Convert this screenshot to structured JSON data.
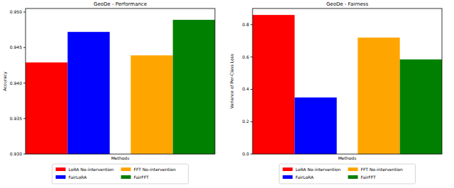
{
  "chart_data": [
    {
      "type": "bar",
      "title": "GeoDe - Performance",
      "x_label": "Methods",
      "y_label": "Accuracy",
      "ylim": [
        0.93,
        0.9505
      ],
      "yticks": [
        {
          "value": 0.93,
          "label": "0.930"
        },
        0.935,
        {
          "value": 0.94,
          "label": "0.940"
        },
        0.945,
        {
          "value": 0.95,
          "label": "0.950"
        }
      ],
      "tick_labels": "y",
      "legend": "bottom",
      "grid": false,
      "series": [
        {
          "name": "LoRA No-intervention",
          "color": "#ff0000",
          "values": [
            0.9429
          ]
        },
        {
          "name": "FairLoRA",
          "color": "#0000ff",
          "values": [
            0.9472
          ]
        },
        {
          "name": "FFT No-intervention",
          "color": "#ffa500",
          "values": [
            0.9439
          ]
        },
        {
          "name": "FairFFT",
          "color": "#008000",
          "values": [
            0.9489
          ]
        }
      ]
    },
    {
      "type": "bar",
      "title": "GeoDe - Fairness",
      "x_label": "Methods",
      "y_label": "Variance of Per-Class Loss",
      "ylim": [
        0,
        0.9
      ],
      "yticks": [
        {
          "value": 0,
          "label": "0.0"
        },
        0.2,
        0.4,
        0.6,
        0.8
      ],
      "tick_labels": "y",
      "legend": "bottom",
      "grid": false,
      "series": [
        {
          "name": "LoRA No-intervention",
          "color": "#ff0000",
          "values": [
            0.86
          ]
        },
        {
          "name": "FairLoRA",
          "color": "#0000ff",
          "values": [
            0.35
          ]
        },
        {
          "name": "FFT No-intervention",
          "color": "#ffa500",
          "values": [
            0.72
          ]
        },
        {
          "name": "FairFFT",
          "color": "#008000",
          "values": [
            0.585
          ]
        }
      ]
    }
  ]
}
